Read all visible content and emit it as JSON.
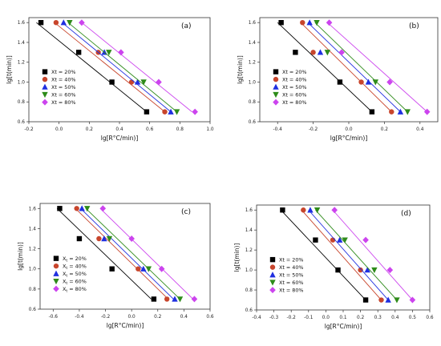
{
  "colors": {
    "Xt = 20%": "#000000",
    "Xt = 40%": "#c8452c",
    "Xt = 50%": "#1f2fe0",
    "Xt = 60%": "#2e8b1a",
    "Xt = 80%": "#cc44ee"
  },
  "chart_data": [
    {
      "type": "scatter",
      "panel_label": "(a)",
      "xlabel": "lg[R°C/min)]",
      "ylabel": "lg[t(min)]",
      "xlim": [
        -0.2,
        1.0
      ],
      "ylim": [
        0.6,
        1.65
      ],
      "xticks": [
        "-0.2",
        "0.0",
        "0.2",
        "0.4",
        "0.6",
        "0.8",
        "1.0"
      ],
      "yticks": [
        "0.6",
        "0.8",
        "1.0",
        "1.2",
        "1.4",
        "1.6"
      ],
      "legend_position": "bottom-left",
      "y": [
        1.6,
        1.3,
        1.0,
        0.7
      ],
      "series": [
        {
          "name": "Xt = 20%",
          "marker": "square",
          "x": [
            -0.12,
            0.13,
            0.35,
            0.58
          ],
          "fit": [
            [
              -0.15,
              1.6
            ],
            [
              0.58,
              0.7
            ]
          ]
        },
        {
          "name": "Xt = 40%",
          "marker": "circle",
          "x": [
            -0.02,
            0.26,
            0.48,
            0.7
          ],
          "fit": [
            [
              -0.03,
              1.6
            ],
            [
              0.7,
              0.7
            ]
          ]
        },
        {
          "name": "Xt = 50%",
          "marker": "triangle-up",
          "x": [
            0.03,
            0.3,
            0.52,
            0.74
          ],
          "fit": [
            [
              0.02,
              1.6
            ],
            [
              0.74,
              0.7
            ]
          ]
        },
        {
          "name": "Xt = 60%",
          "marker": "triangle-down",
          "x": [
            0.07,
            0.33,
            0.56,
            0.78
          ],
          "fit": [
            [
              0.06,
              1.6
            ],
            [
              0.78,
              0.7
            ]
          ]
        },
        {
          "name": "Xt = 80%",
          "marker": "diamond",
          "x": [
            0.15,
            0.41,
            0.66,
            0.9
          ],
          "fit": [
            [
              0.15,
              1.6
            ],
            [
              0.88,
              0.7
            ]
          ]
        }
      ]
    },
    {
      "type": "scatter",
      "panel_label": "(b)",
      "xlabel": "lg[R°C/min)]",
      "ylabel": "lg[t(min)]",
      "xlim": [
        -0.5,
        0.5
      ],
      "ylim": [
        0.6,
        1.65
      ],
      "xticks": [
        "-0.4",
        "-0.2",
        "0.0",
        "0.2",
        "0.4"
      ],
      "yticks": [
        "0.6",
        "0.8",
        "1.0",
        "1.2",
        "1.4",
        "1.6"
      ],
      "legend_position": "bottom-left",
      "y": [
        1.6,
        1.3,
        1.0,
        0.7
      ],
      "series": [
        {
          "name": "Xt = 20%",
          "marker": "square",
          "x": [
            -0.38,
            -0.3,
            -0.05,
            0.13
          ],
          "fit": [
            [
              -0.4,
              1.6
            ],
            [
              0.13,
              0.7
            ]
          ]
        },
        {
          "name": "Xt = 40%",
          "marker": "circle",
          "x": [
            -0.26,
            -0.2,
            0.07,
            0.24
          ],
          "fit": [
            [
              -0.27,
              1.6
            ],
            [
              0.24,
              0.7
            ]
          ]
        },
        {
          "name": "Xt = 50%",
          "marker": "triangle-up",
          "x": [
            -0.22,
            -0.16,
            0.11,
            0.29
          ],
          "fit": [
            [
              -0.23,
              1.6
            ],
            [
              0.29,
              0.7
            ]
          ]
        },
        {
          "name": "Xt = 60%",
          "marker": "triangle-down",
          "x": [
            -0.18,
            -0.12,
            0.15,
            0.33
          ],
          "fit": [
            [
              -0.19,
              1.6
            ],
            [
              0.33,
              0.7
            ]
          ]
        },
        {
          "name": "Xt = 80%",
          "marker": "diamond",
          "x": [
            -0.11,
            -0.04,
            0.23,
            0.44
          ],
          "fit": [
            [
              -0.12,
              1.6
            ],
            [
              0.44,
              0.7
            ]
          ]
        }
      ]
    },
    {
      "type": "scatter",
      "panel_label": "(c)",
      "xlabel": "lg[R°C/min)]",
      "ylabel": "lg[t(min)]",
      "xlim": [
        -0.7,
        0.6
      ],
      "ylim": [
        0.6,
        1.65
      ],
      "xticks": [
        "-0.6",
        "-0.4",
        "-0.2",
        "0.0",
        "0.2",
        "0.4",
        "0.6"
      ],
      "yticks": [
        "0.6",
        "0.8",
        "1.0",
        "1.2",
        "1.4",
        "1.6"
      ],
      "legend_position": "bottom-left",
      "legend_labels": [
        "X",
        "X",
        "X",
        "X",
        "X"
      ],
      "legend_subscripts": [
        "t",
        "t",
        "t",
        "t",
        "t"
      ],
      "legend_suffixes": [
        " = 20%",
        " = 40%",
        " = 50%",
        " = 60%",
        " = 80%"
      ],
      "y": [
        1.6,
        1.3,
        1.0,
        0.7
      ],
      "series": [
        {
          "name": "Xt = 20%",
          "marker": "square",
          "x": [
            -0.55,
            -0.4,
            -0.15,
            0.17
          ],
          "fit": [
            [
              -0.57,
              1.6
            ],
            [
              0.15,
              0.7
            ]
          ]
        },
        {
          "name": "Xt = 40%",
          "marker": "circle",
          "x": [
            -0.42,
            -0.25,
            0.05,
            0.27
          ],
          "fit": [
            [
              -0.43,
              1.6
            ],
            [
              0.28,
              0.7
            ]
          ]
        },
        {
          "name": "Xt = 50%",
          "marker": "triangle-up",
          "x": [
            -0.38,
            -0.21,
            0.09,
            0.33
          ],
          "fit": [
            [
              -0.39,
              1.6
            ],
            [
              0.32,
              0.7
            ]
          ]
        },
        {
          "name": "Xt = 60%",
          "marker": "triangle-down",
          "x": [
            -0.34,
            -0.17,
            0.13,
            0.37
          ],
          "fit": [
            [
              -0.35,
              1.6
            ],
            [
              0.37,
              0.7
            ]
          ]
        },
        {
          "name": "Xt = 80%",
          "marker": "diamond",
          "x": [
            -0.22,
            0.0,
            0.23,
            0.48
          ],
          "fit": [
            [
              -0.24,
              1.6
            ],
            [
              0.47,
              0.7
            ]
          ]
        }
      ]
    },
    {
      "type": "scatter",
      "panel_label": "(d)",
      "xlabel": "lg[R°C/min)]",
      "ylabel": "lg[t(min)]",
      "xlim": [
        -0.4,
        0.6
      ],
      "ylim": [
        0.6,
        1.65
      ],
      "xticks": [
        "-0.4",
        "-0.3",
        "-0.2",
        "-0.1",
        "0.0",
        "0.1",
        "0.2",
        "0.3",
        "0.4",
        "0.5",
        "0.6"
      ],
      "yticks": [
        "0.6",
        "0.8",
        "1.0",
        "1.2",
        "1.4",
        "1.6"
      ],
      "legend_position": "bottom-left",
      "y": [
        1.6,
        1.3,
        1.0,
        0.7
      ],
      "series": [
        {
          "name": "Xt = 20%",
          "marker": "square",
          "x": [
            -0.25,
            -0.06,
            0.07,
            0.23
          ],
          "fit": [
            [
              -0.26,
              1.6
            ],
            [
              0.23,
              0.7
            ]
          ]
        },
        {
          "name": "Xt = 40%",
          "marker": "circle",
          "x": [
            -0.13,
            0.04,
            0.2,
            0.32
          ],
          "fit": [
            [
              -0.14,
              1.6
            ],
            [
              0.32,
              0.7
            ]
          ]
        },
        {
          "name": "Xt = 50%",
          "marker": "triangle-up",
          "x": [
            -0.09,
            0.08,
            0.24,
            0.36
          ],
          "fit": [
            [
              -0.1,
              1.6
            ],
            [
              0.36,
              0.7
            ]
          ]
        },
        {
          "name": "Xt = 60%",
          "marker": "triangle-down",
          "x": [
            -0.05,
            0.11,
            0.28,
            0.41
          ],
          "fit": [
            [
              -0.06,
              1.6
            ],
            [
              0.41,
              0.7
            ]
          ]
        },
        {
          "name": "Xt = 80%",
          "marker": "diamond",
          "x": [
            0.05,
            0.23,
            0.37,
            0.5
          ],
          "fit": [
            [
              0.04,
              1.6
            ],
            [
              0.5,
              0.7
            ]
          ]
        }
      ]
    }
  ]
}
